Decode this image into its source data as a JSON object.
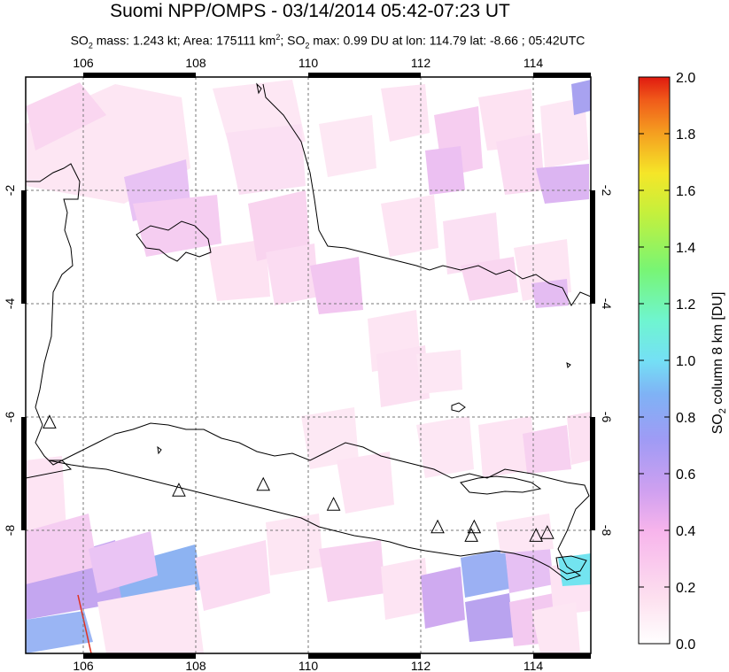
{
  "title": "Suomi NPP/OMPS - 03/14/2014 05:42-07:23 UT",
  "subtitle": {
    "so2_prefix": "SO",
    "so2_sub": "2",
    "mass_text": " mass: 1.243 kt; Area: 175111 km",
    "area_sup": "2",
    "so2_prefix2": "; SO",
    "so2_sub2": "2",
    "max_text": " max: 0.99 DU at lon: 114.79 lat: -8.66 ; 05:42UTC"
  },
  "map": {
    "lon_ticks": [
      "106",
      "108",
      "110",
      "112",
      "114"
    ],
    "lat_ticks": [
      "-2",
      "-4",
      "-6",
      "-8"
    ],
    "lon_range": [
      105,
      115.5
    ],
    "lat_range": [
      -0.3,
      -10.3
    ],
    "volcano_icon": "triangle-outline-icon",
    "volcanoes": [
      {
        "lon": 105.4,
        "lat": -6.1
      },
      {
        "lon": 107.7,
        "lat": -7.3
      },
      {
        "lon": 109.2,
        "lat": -7.2
      },
      {
        "lon": 110.45,
        "lat": -7.55
      },
      {
        "lon": 112.3,
        "lat": -7.95
      },
      {
        "lon": 112.95,
        "lat": -7.95
      },
      {
        "lon": 112.9,
        "lat": -8.1
      },
      {
        "lon": 114.05,
        "lat": -8.1
      },
      {
        "lon": 114.25,
        "lat": -8.05
      }
    ]
  },
  "colorbar": {
    "label_main": "SO",
    "label_sub": "2",
    "label_rest": " column 8 km [DU]",
    "ticks": [
      "0.0",
      "0.2",
      "0.4",
      "0.6",
      "0.8",
      "1.0",
      "1.2",
      "1.4",
      "1.6",
      "1.8",
      "2.0"
    ],
    "range": [
      0,
      2
    ],
    "colors": [
      "#ffffff",
      "#fde0ef",
      "#f7b4ec",
      "#cfa0f0",
      "#9f9bf5",
      "#7fb2f5",
      "#74e0f5",
      "#6ff5d0",
      "#78f574",
      "#c5f03c",
      "#f5e628",
      "#f5a020",
      "#f05a1a",
      "#e01a10"
    ]
  },
  "colors": {
    "coast": "#000000",
    "grid": "#777777",
    "pink_light": "#fde6f3",
    "pink": "#f9d2ef",
    "violet": "#e0b8f2",
    "purple": "#c3a2ee",
    "blue": "#8fb4f2",
    "cyan": "#6fe8f0"
  }
}
